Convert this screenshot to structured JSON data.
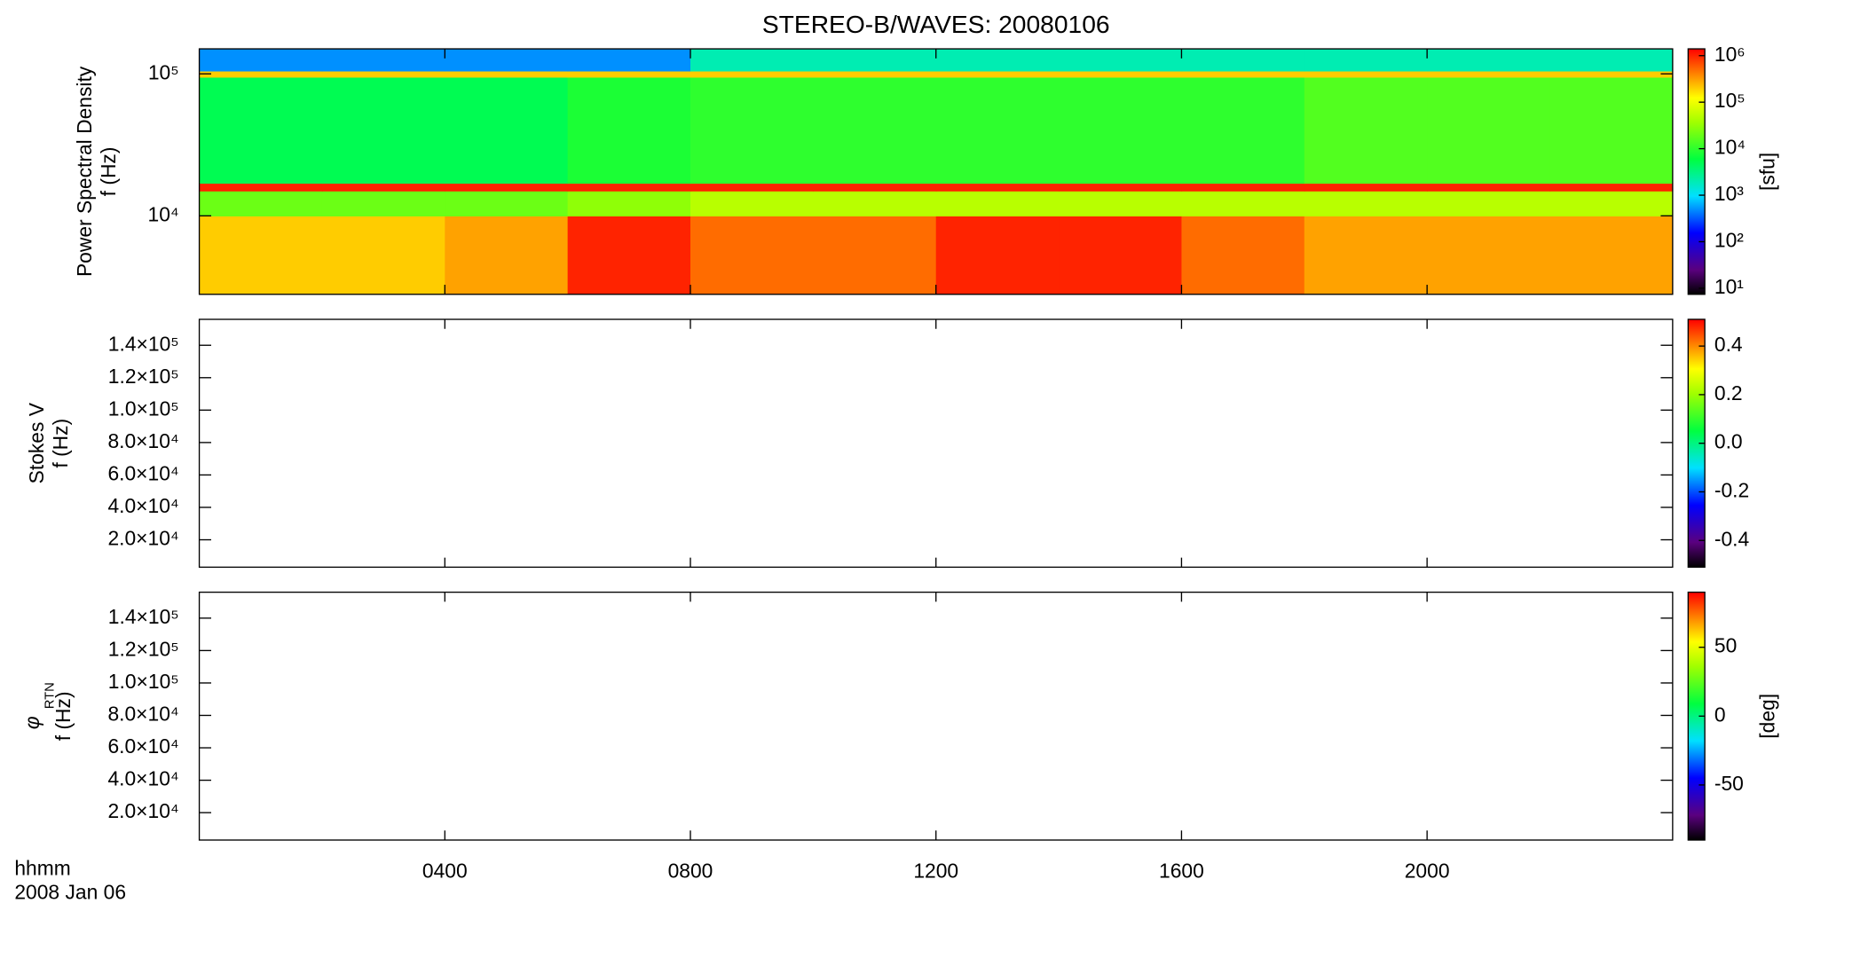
{
  "title": "STEREO-B/WAVES: 20080106",
  "x_axis": {
    "label": "hhmm",
    "sublabel": "2008 Jan 06"
  },
  "colormap": [
    {
      "at": 0,
      "color": "#000000"
    },
    {
      "at": 0.1,
      "color": "#5a007f"
    },
    {
      "at": 0.25,
      "color": "#0000ff"
    },
    {
      "at": 0.4,
      "color": "#00e0ff"
    },
    {
      "at": 0.55,
      "color": "#00ff40"
    },
    {
      "at": 0.7,
      "color": "#a0ff00"
    },
    {
      "at": 0.8,
      "color": "#ffff00"
    },
    {
      "at": 0.9,
      "color": "#ff8000"
    },
    {
      "at": 1,
      "color": "#ff0000"
    }
  ],
  "chart_data": [
    {
      "type": "spectrogram",
      "ylabel": [
        "Power Spectral Density",
        "f (Hz)"
      ],
      "log": true,
      "xlim": [
        0,
        24
      ],
      "ylim": [
        2800,
        150000
      ],
      "yticks": [
        {
          "value": 10000,
          "label": "10⁴"
        },
        {
          "value": 100000,
          "label": "10⁵"
        }
      ],
      "time_edges": [
        0,
        2,
        4,
        6,
        8,
        10,
        12,
        14,
        16,
        18,
        20,
        22,
        24
      ],
      "freq_edges": [
        2800,
        10000,
        15000,
        17000,
        95000,
        105000,
        150000
      ],
      "values": [
        [
          200000,
          200000,
          300000,
          1000000,
          500000,
          500000,
          1000000,
          1000000,
          500000,
          300000,
          300000,
          300000
        ],
        [
          20000,
          20000,
          20000,
          30000,
          50000,
          50000,
          50000,
          50000,
          50000,
          50000,
          50000,
          50000
        ],
        [
          1000000,
          1000000,
          1000000,
          1000000,
          1000000,
          1000000,
          1000000,
          1000000,
          1000000,
          1000000,
          1000000,
          1000000
        ],
        [
          5000,
          5000,
          5000,
          8000,
          10000,
          10000,
          10000,
          10000,
          10000,
          15000,
          15000,
          15000
        ],
        [
          200000,
          200000,
          200000,
          200000,
          200000,
          200000,
          200000,
          200000,
          200000,
          200000,
          200000,
          200000
        ],
        [
          500,
          500,
          500,
          500,
          2000,
          2000,
          2000,
          2000,
          2000,
          2000,
          2000,
          2000
        ]
      ],
      "colorbar": {
        "log": true,
        "lim": [
          7.4,
          1400000
        ],
        "label": "[sfu]",
        "ticks": [
          {
            "value": 10,
            "label": "10¹"
          },
          {
            "value": 100,
            "label": "10²"
          },
          {
            "value": 1000,
            "label": "10³"
          },
          {
            "value": 10000,
            "label": "10⁴"
          },
          {
            "value": 100000,
            "label": "10⁵"
          },
          {
            "value": 1000000,
            "label": "10⁶"
          }
        ]
      }
    },
    {
      "type": "spectrogram",
      "ylabel": [
        "Stokes V",
        "f (Hz)"
      ],
      "log": false,
      "xlim": [
        0,
        24
      ],
      "ylim": [
        3100,
        156000
      ],
      "yticks": [
        {
          "value": 20000,
          "label": "2.0×10⁴"
        },
        {
          "value": 40000,
          "label": "4.0×10⁴"
        },
        {
          "value": 60000,
          "label": "6.0×10⁴"
        },
        {
          "value": 80000,
          "label": "8.0×10⁴"
        },
        {
          "value": 100000,
          "label": "1.0×10⁵"
        },
        {
          "value": 120000,
          "label": "1.2×10⁵"
        },
        {
          "value": 140000,
          "label": "1.4×10⁵"
        }
      ],
      "colorbar": {
        "log": false,
        "lim": [
          -0.51,
          0.51
        ],
        "ticks": [
          {
            "value": -0.4,
            "label": "-0.4"
          },
          {
            "value": -0.2,
            "label": "-0.2"
          },
          {
            "value": 0,
            "label": "0.0"
          },
          {
            "value": 0.2,
            "label": "0.2"
          },
          {
            "value": 0.4,
            "label": "0.4"
          }
        ]
      }
    },
    {
      "type": "spectrogram",
      "ylabel": [
        "φ",
        "f (Hz)"
      ],
      "ylabel_subscript": "RTN",
      "log": false,
      "xlim": [
        0,
        24
      ],
      "ylim": [
        3100,
        156000
      ],
      "xticks": [
        {
          "value": 4,
          "label": "0400"
        },
        {
          "value": 8,
          "label": "0800"
        },
        {
          "value": 12,
          "label": "1200"
        },
        {
          "value": 16,
          "label": "1600"
        },
        {
          "value": 20,
          "label": "2000"
        }
      ],
      "yticks": [
        {
          "value": 20000,
          "label": "2.0×10⁴"
        },
        {
          "value": 40000,
          "label": "4.0×10⁴"
        },
        {
          "value": 60000,
          "label": "6.0×10⁴"
        },
        {
          "value": 80000,
          "label": "8.0×10⁴"
        },
        {
          "value": 100000,
          "label": "1.0×10⁵"
        },
        {
          "value": 120000,
          "label": "1.2×10⁵"
        },
        {
          "value": 140000,
          "label": "1.4×10⁵"
        }
      ],
      "colorbar": {
        "log": false,
        "lim": [
          -90,
          90
        ],
        "label": "[deg]",
        "ticks": [
          -50,
          0,
          50
        ]
      }
    }
  ]
}
